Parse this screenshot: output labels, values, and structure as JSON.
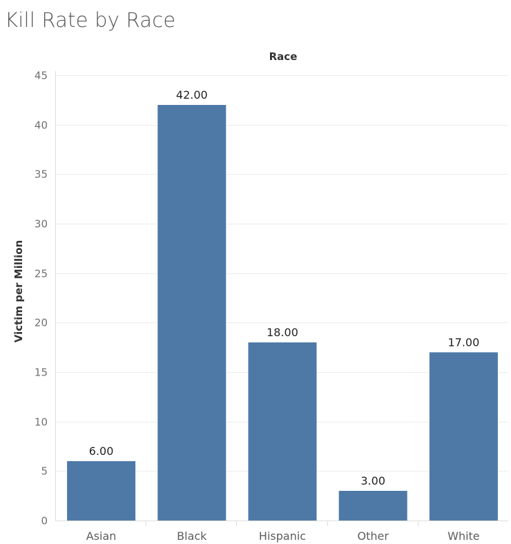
{
  "chart_data": {
    "type": "bar",
    "title": "Kill Rate by Race",
    "column_header": "Race",
    "xlabel": "",
    "ylabel": "Victim per Million",
    "categories": [
      "Asian",
      "Black",
      "Hispanic",
      "Other",
      "White"
    ],
    "values": [
      6.0,
      42.0,
      18.0,
      3.0,
      17.0
    ],
    "data_labels": [
      "6.00",
      "42.00",
      "18.00",
      "3.00",
      "17.00"
    ],
    "ylim": [
      0,
      45
    ],
    "yticks": [
      0,
      5,
      10,
      15,
      20,
      25,
      30,
      35,
      40,
      45
    ],
    "bar_color": "#4e79a7",
    "grid": true
  }
}
